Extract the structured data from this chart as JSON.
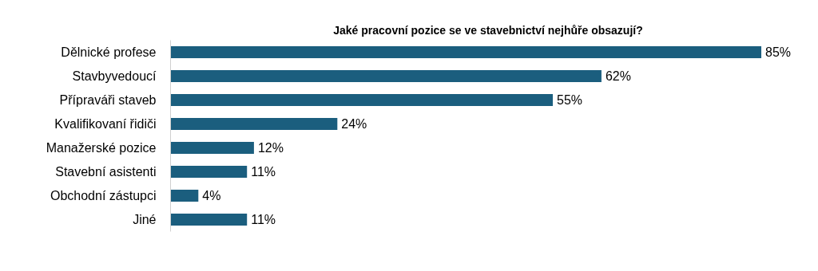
{
  "chart_data": {
    "type": "bar",
    "orientation": "horizontal",
    "title": "Jaké pracovní pozice se ve stavebnictví nejhůře obsazují?",
    "categories": [
      "Dělnické profese",
      "Stavbyvedoucí",
      "Přípraváři staveb",
      "Kvalifikovaní řidiči",
      "Manažerské pozice",
      "Stavební asistenti",
      "Obchodní zástupci",
      "Jiné"
    ],
    "values": [
      85,
      62,
      55,
      24,
      12,
      11,
      4,
      11
    ],
    "value_labels": [
      "85%",
      "62%",
      "55%",
      "24%",
      "12%",
      "11%",
      "4%",
      "11%"
    ],
    "color": "#1b5e7e"
  }
}
